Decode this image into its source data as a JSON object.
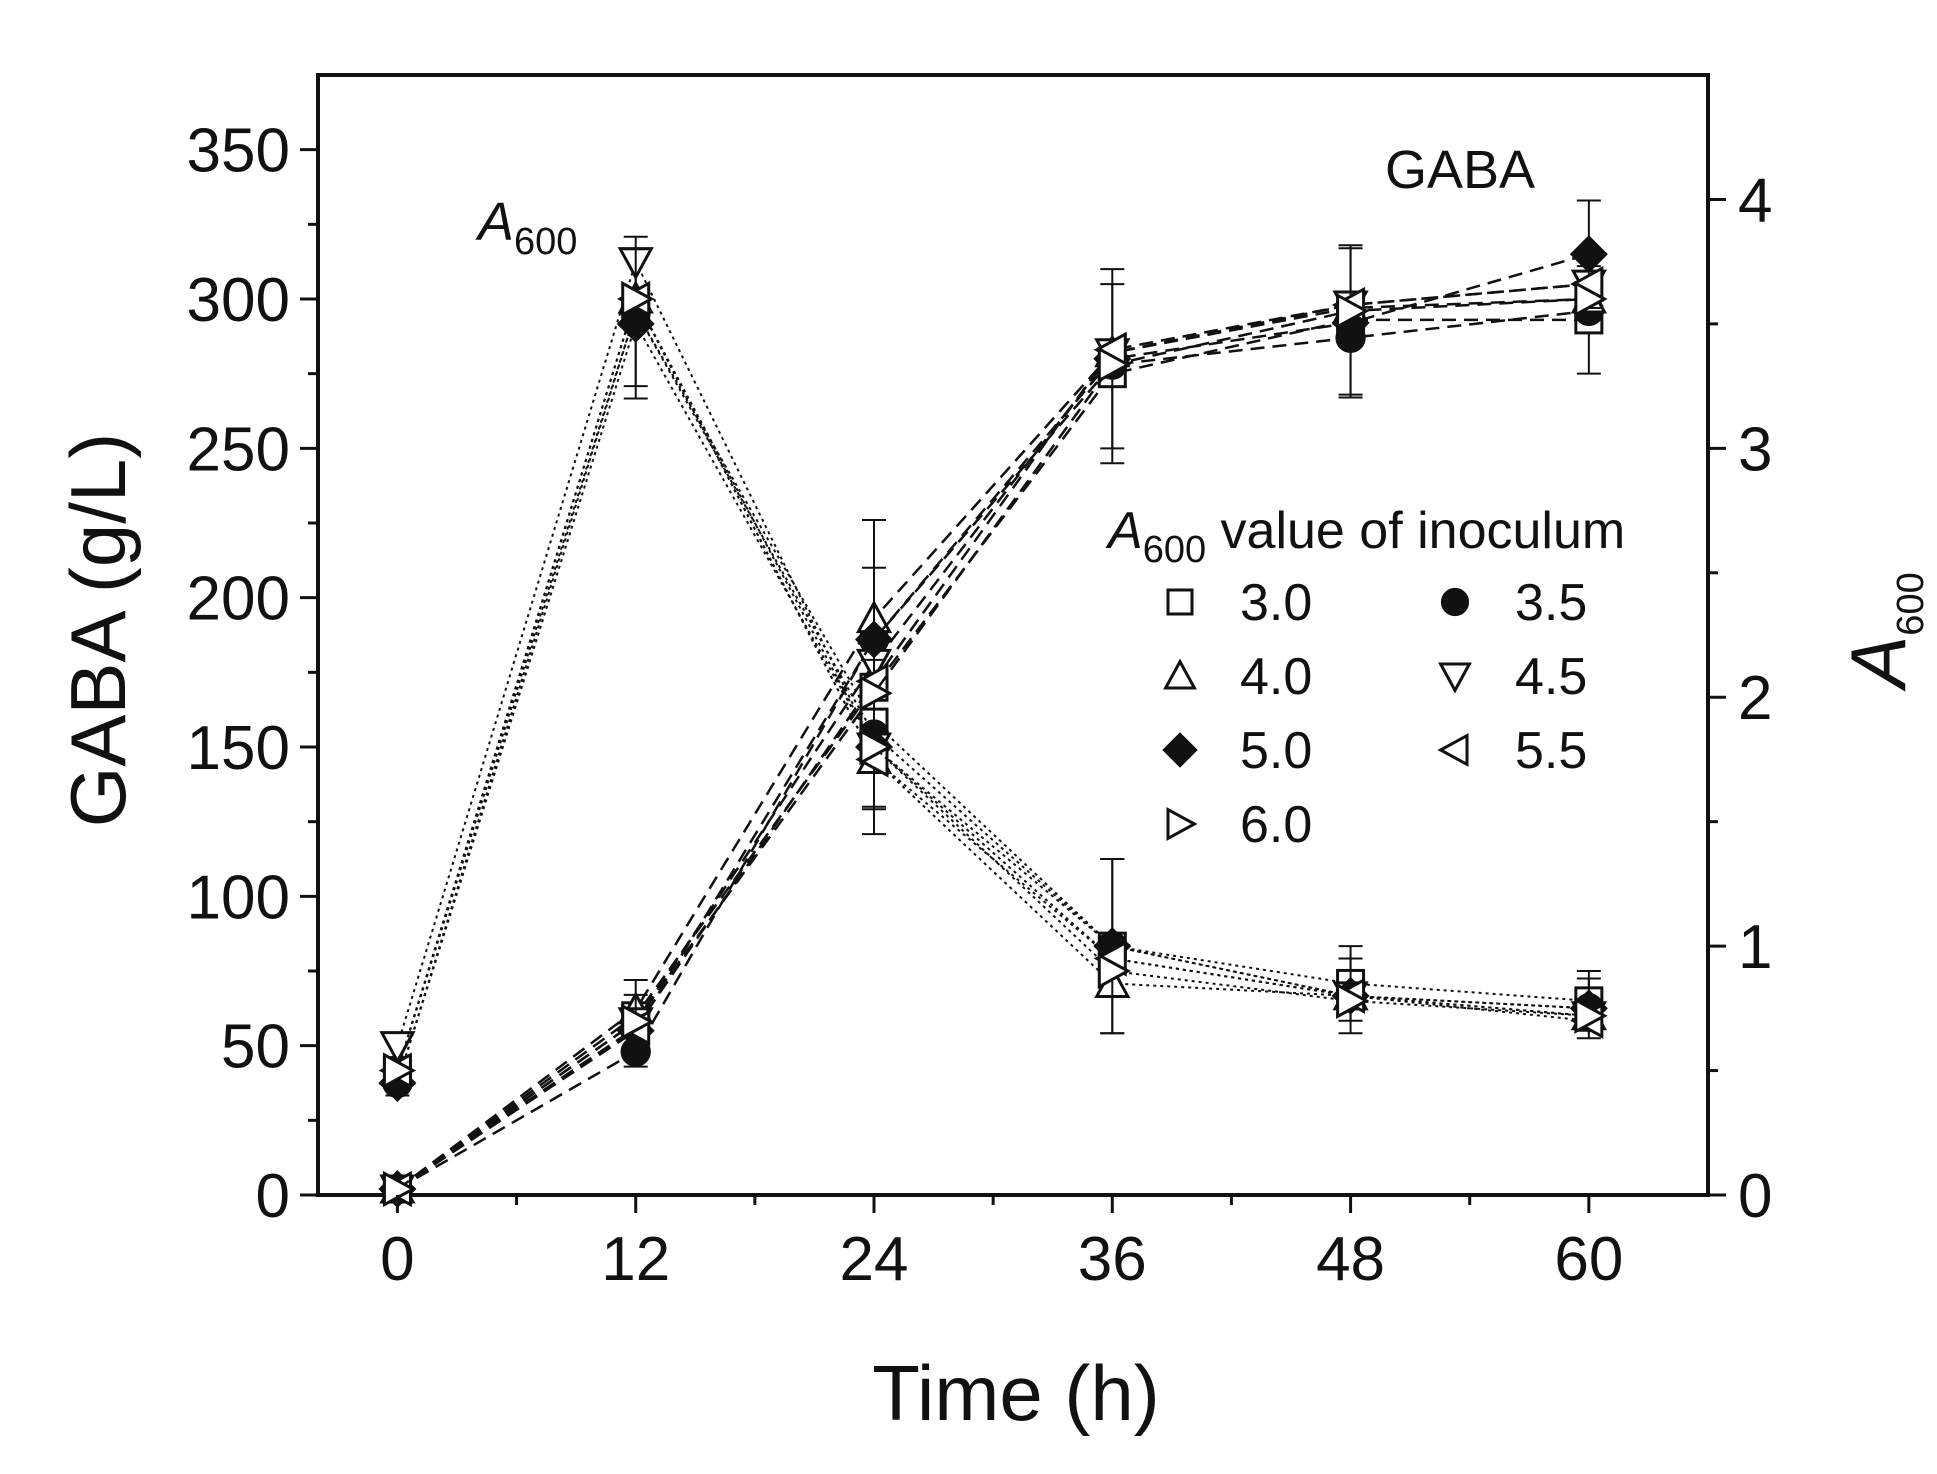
{
  "chart_data": {
    "type": "line",
    "x_label": "Time (h)",
    "y_label": "GABA (g/L)",
    "y2_label_main": "A",
    "y2_label_sub": "600",
    "x_ticks": [
      0,
      12,
      24,
      36,
      48,
      60
    ],
    "y_ticks": [
      0,
      50,
      100,
      150,
      200,
      250,
      300,
      350
    ],
    "y2_ticks": [
      0,
      1,
      2,
      3,
      4
    ],
    "xlim": [
      -4,
      66
    ],
    "ylim": [
      0,
      375
    ],
    "y2lim": [
      0,
      4.5
    ],
    "x": [
      0,
      12,
      24,
      36,
      48,
      60
    ],
    "annotations": {
      "gaba_label": "GABA",
      "a600_label_main": "A",
      "a600_label_sub": "600"
    },
    "legend": {
      "title_main": "A",
      "title_sub": "600",
      "title_rest": " value of inoculum"
    },
    "series": [
      {
        "name": "3.0",
        "marker": "square",
        "filled": false,
        "gaba": [
          2,
          60,
          170,
          275,
          293,
          293
        ],
        "a600": [
          0.5,
          3.55,
          1.9,
          1.0,
          0.85,
          0.78
        ]
      },
      {
        "name": "3.5",
        "marker": "circle",
        "filled": true,
        "gaba": [
          2,
          48,
          186,
          278,
          287,
          296
        ],
        "a600": [
          0.45,
          3.55,
          1.85,
          1.0,
          0.8,
          0.75
        ]
      },
      {
        "name": "4.0",
        "marker": "triangle-up",
        "filled": false,
        "gaba": [
          2,
          62,
          193,
          282,
          297,
          300
        ],
        "a600": [
          0.5,
          3.6,
          1.75,
          0.85,
          0.8,
          0.72
        ]
      },
      {
        "name": "4.5",
        "marker": "triangle-down",
        "filled": false,
        "gaba": [
          2,
          58,
          178,
          282,
          298,
          305
        ],
        "a600": [
          0.6,
          3.75,
          1.8,
          0.95,
          0.8,
          0.72
        ]
      },
      {
        "name": "5.0",
        "marker": "diamond",
        "filled": true,
        "gaba": [
          2,
          55,
          186,
          280,
          292,
          315
        ],
        "a600": [
          0.45,
          3.5,
          1.8,
          1.0,
          0.8,
          0.75
        ]
      },
      {
        "name": "5.5",
        "marker": "triangle-left",
        "filled": false,
        "gaba": [
          2,
          56,
          172,
          283,
          298,
          305
        ],
        "a600": [
          0.5,
          3.6,
          1.75,
          0.95,
          0.8,
          0.7
        ]
      },
      {
        "name": "6.0",
        "marker": "triangle-right",
        "filled": false,
        "gaba": [
          2,
          58,
          168,
          278,
          296,
          300
        ],
        "a600": [
          0.5,
          3.6,
          1.8,
          0.9,
          0.78,
          0.72
        ]
      }
    ],
    "error_bars": {
      "gaba": [
        1,
        12,
        40,
        30,
        25,
        18
      ],
      "a600": [
        0.05,
        0.3,
        0.35,
        0.35,
        0.15,
        0.12
      ]
    },
    "line_color": "#111111"
  }
}
